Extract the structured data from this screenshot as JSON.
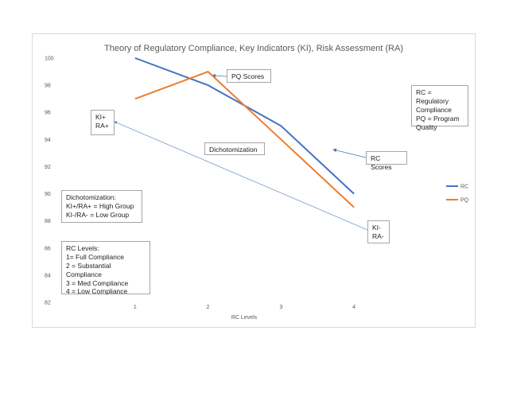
{
  "chart_data": {
    "type": "line",
    "title": "Theory of Regulatory Compliance, Key Indicators (KI), Risk Assessment (RA)",
    "xlabel": "RC Levels",
    "ylabel": "",
    "categories": [
      "1",
      "2",
      "3",
      "4"
    ],
    "ylim": [
      82,
      100
    ],
    "yticks": [
      82,
      84,
      86,
      88,
      90,
      92,
      94,
      96,
      98,
      100
    ],
    "grid": false,
    "legend_position": "right",
    "series": [
      {
        "name": "RC",
        "values": [
          100,
          98,
          95,
          90
        ],
        "color": "#4472c4"
      },
      {
        "name": "PQ",
        "values": [
          97,
          99,
          94,
          89
        ],
        "color": "#ed7d31"
      }
    ]
  },
  "annotations": {
    "pq_scores": "PQ Scores",
    "rc_scores": "RC Scores",
    "rc_pq_definition": "RC = Regulatory\nCompliance\nPQ = Program\nQuality",
    "ki_ra_plus": "KI+\nRA+",
    "ki_ra_minus": "KI-\nRA-",
    "dichotomization": "Dichotomization",
    "dichotomization_box": "Dichotomization:\nKI+/RA+ = High Group\nKI-/RA- = Low Group",
    "rc_levels_box": "RC Levels:\n1= Full Compliance\n2 = Substantial Compliance\n3 = Med Compliance\n4 = Low Compliance"
  },
  "colors": {
    "arrow": "#4472c4",
    "axis_text": "#595959"
  }
}
